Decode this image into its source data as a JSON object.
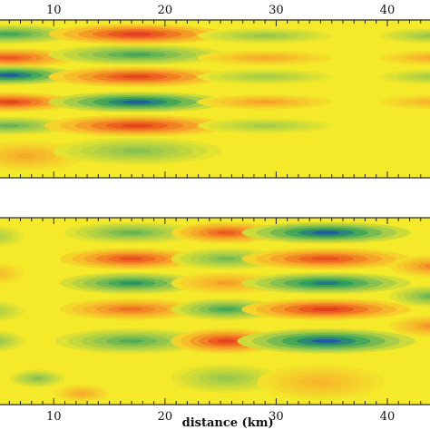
{
  "chart_data": [
    {
      "type": "heatmap",
      "title": "",
      "xlabel": "",
      "ylabel": "",
      "xlim": [
        5,
        44
      ],
      "xticks": [
        10,
        20,
        30,
        40
      ],
      "tick_labels": [
        "10",
        "20",
        "30",
        "40"
      ],
      "colormap": [
        "#1f3fbf",
        "#2fa05a",
        "#9ec94a",
        "#f4ea2a",
        "#f6b02a",
        "#ee6020",
        "#d62020"
      ],
      "background_color": "#f4ea2a",
      "features": [
        {
          "x": 6.0,
          "rel_depth": 0.09,
          "sx": 3.2,
          "sy": 0.032,
          "value": -0.6
        },
        {
          "x": 6.0,
          "rel_depth": 0.24,
          "sx": 3.2,
          "sy": 0.032,
          "value": 0.7
        },
        {
          "x": 6.0,
          "rel_depth": 0.35,
          "sx": 3.2,
          "sy": 0.032,
          "value": -0.9
        },
        {
          "x": 6.0,
          "rel_depth": 0.52,
          "sx": 3.2,
          "sy": 0.032,
          "value": 0.8
        },
        {
          "x": 6.0,
          "rel_depth": 0.67,
          "sx": 3.0,
          "sy": 0.03,
          "value": -0.5
        },
        {
          "x": 7.5,
          "rel_depth": 0.86,
          "sx": 2.8,
          "sy": 0.05,
          "value": 0.35
        },
        {
          "x": 17.5,
          "rel_depth": 0.09,
          "sx": 4.2,
          "sy": 0.034,
          "value": 0.85
        },
        {
          "x": 17.5,
          "rel_depth": 0.22,
          "sx": 4.2,
          "sy": 0.034,
          "value": -0.6
        },
        {
          "x": 17.5,
          "rel_depth": 0.36,
          "sx": 4.2,
          "sy": 0.034,
          "value": 0.8
        },
        {
          "x": 17.5,
          "rel_depth": 0.52,
          "sx": 4.2,
          "sy": 0.034,
          "value": -0.9
        },
        {
          "x": 17.5,
          "rel_depth": 0.67,
          "sx": 4.4,
          "sy": 0.036,
          "value": 0.8
        },
        {
          "x": 17.5,
          "rel_depth": 0.83,
          "sx": 4.0,
          "sy": 0.045,
          "value": -0.4
        },
        {
          "x": 29.0,
          "rel_depth": 0.1,
          "sx": 3.2,
          "sy": 0.025,
          "value": -0.35
        },
        {
          "x": 29.0,
          "rel_depth": 0.24,
          "sx": 3.2,
          "sy": 0.025,
          "value": 0.35
        },
        {
          "x": 29.0,
          "rel_depth": 0.36,
          "sx": 3.2,
          "sy": 0.025,
          "value": -0.3
        },
        {
          "x": 29.0,
          "rel_depth": 0.52,
          "sx": 3.2,
          "sy": 0.025,
          "value": 0.4
        },
        {
          "x": 29.0,
          "rel_depth": 0.67,
          "sx": 3.2,
          "sy": 0.025,
          "value": -0.3
        },
        {
          "x": 44.0,
          "rel_depth": 0.1,
          "sx": 2.5,
          "sy": 0.025,
          "value": -0.35
        },
        {
          "x": 44.0,
          "rel_depth": 0.24,
          "sx": 2.5,
          "sy": 0.025,
          "value": 0.35
        },
        {
          "x": 44.0,
          "rel_depth": 0.36,
          "sx": 2.5,
          "sy": 0.025,
          "value": -0.3
        },
        {
          "x": 44.0,
          "rel_depth": 0.52,
          "sx": 2.5,
          "sy": 0.025,
          "value": 0.3
        }
      ]
    },
    {
      "type": "heatmap",
      "title": "",
      "xlabel": "distance (km)",
      "ylabel": "",
      "xlim": [
        5,
        44
      ],
      "xticks": [
        10,
        20,
        30,
        40
      ],
      "tick_labels": [
        "10",
        "20",
        "30",
        "40"
      ],
      "colormap": [
        "#1f3fbf",
        "#2fa05a",
        "#9ec94a",
        "#f4ea2a",
        "#f6b02a",
        "#ee6020",
        "#d62020"
      ],
      "background_color": "#f4ea2a",
      "features": [
        {
          "x": 17.0,
          "rel_depth": 0.08,
          "sx": 3.2,
          "sy": 0.03,
          "value": -0.5
        },
        {
          "x": 17.0,
          "rel_depth": 0.22,
          "sx": 3.4,
          "sy": 0.03,
          "value": 0.75
        },
        {
          "x": 17.0,
          "rel_depth": 0.35,
          "sx": 3.4,
          "sy": 0.03,
          "value": -0.7
        },
        {
          "x": 17.0,
          "rel_depth": 0.49,
          "sx": 3.4,
          "sy": 0.03,
          "value": 0.6
        },
        {
          "x": 17.0,
          "rel_depth": 0.66,
          "sx": 3.6,
          "sy": 0.035,
          "value": -0.55
        },
        {
          "x": 25.5,
          "rel_depth": 0.08,
          "sx": 2.6,
          "sy": 0.03,
          "value": 0.7
        },
        {
          "x": 25.5,
          "rel_depth": 0.22,
          "sx": 2.6,
          "sy": 0.03,
          "value": -0.45
        },
        {
          "x": 25.5,
          "rel_depth": 0.35,
          "sx": 2.6,
          "sy": 0.03,
          "value": 0.4
        },
        {
          "x": 25.5,
          "rel_depth": 0.49,
          "sx": 2.6,
          "sy": 0.03,
          "value": -0.6
        },
        {
          "x": 25.5,
          "rel_depth": 0.66,
          "sx": 2.6,
          "sy": 0.035,
          "value": 0.8
        },
        {
          "x": 25.5,
          "rel_depth": 0.86,
          "sx": 2.6,
          "sy": 0.04,
          "value": -0.35
        },
        {
          "x": 34.5,
          "rel_depth": 0.08,
          "sx": 4.0,
          "sy": 0.03,
          "value": -0.9
        },
        {
          "x": 34.5,
          "rel_depth": 0.22,
          "sx": 4.0,
          "sy": 0.03,
          "value": 0.75
        },
        {
          "x": 34.5,
          "rel_depth": 0.35,
          "sx": 4.0,
          "sy": 0.03,
          "value": -0.8
        },
        {
          "x": 34.5,
          "rel_depth": 0.49,
          "sx": 4.0,
          "sy": 0.03,
          "value": 0.85
        },
        {
          "x": 34.5,
          "rel_depth": 0.66,
          "sx": 4.2,
          "sy": 0.035,
          "value": -0.9
        },
        {
          "x": 34.0,
          "rel_depth": 0.88,
          "sx": 3.0,
          "sy": 0.05,
          "value": 0.3
        },
        {
          "x": 44.0,
          "rel_depth": 0.26,
          "sx": 2.0,
          "sy": 0.03,
          "value": 0.5
        },
        {
          "x": 44.0,
          "rel_depth": 0.42,
          "sx": 2.0,
          "sy": 0.03,
          "value": -0.5
        },
        {
          "x": 44.0,
          "rel_depth": 0.58,
          "sx": 2.0,
          "sy": 0.03,
          "value": 0.45
        },
        {
          "x": 4.5,
          "rel_depth": 0.1,
          "sx": 1.5,
          "sy": 0.03,
          "value": -0.3
        },
        {
          "x": 4.5,
          "rel_depth": 0.3,
          "sx": 1.5,
          "sy": 0.03,
          "value": 0.3
        },
        {
          "x": 4.5,
          "rel_depth": 0.5,
          "sx": 1.5,
          "sy": 0.03,
          "value": -0.3
        },
        {
          "x": 4.5,
          "rel_depth": 0.66,
          "sx": 1.5,
          "sy": 0.03,
          "value": -0.4
        },
        {
          "x": 8.5,
          "rel_depth": 0.86,
          "sx": 1.3,
          "sy": 0.025,
          "value": -0.4
        },
        {
          "x": 12.5,
          "rel_depth": 0.94,
          "sx": 1.3,
          "sy": 0.025,
          "value": 0.35
        }
      ]
    }
  ]
}
